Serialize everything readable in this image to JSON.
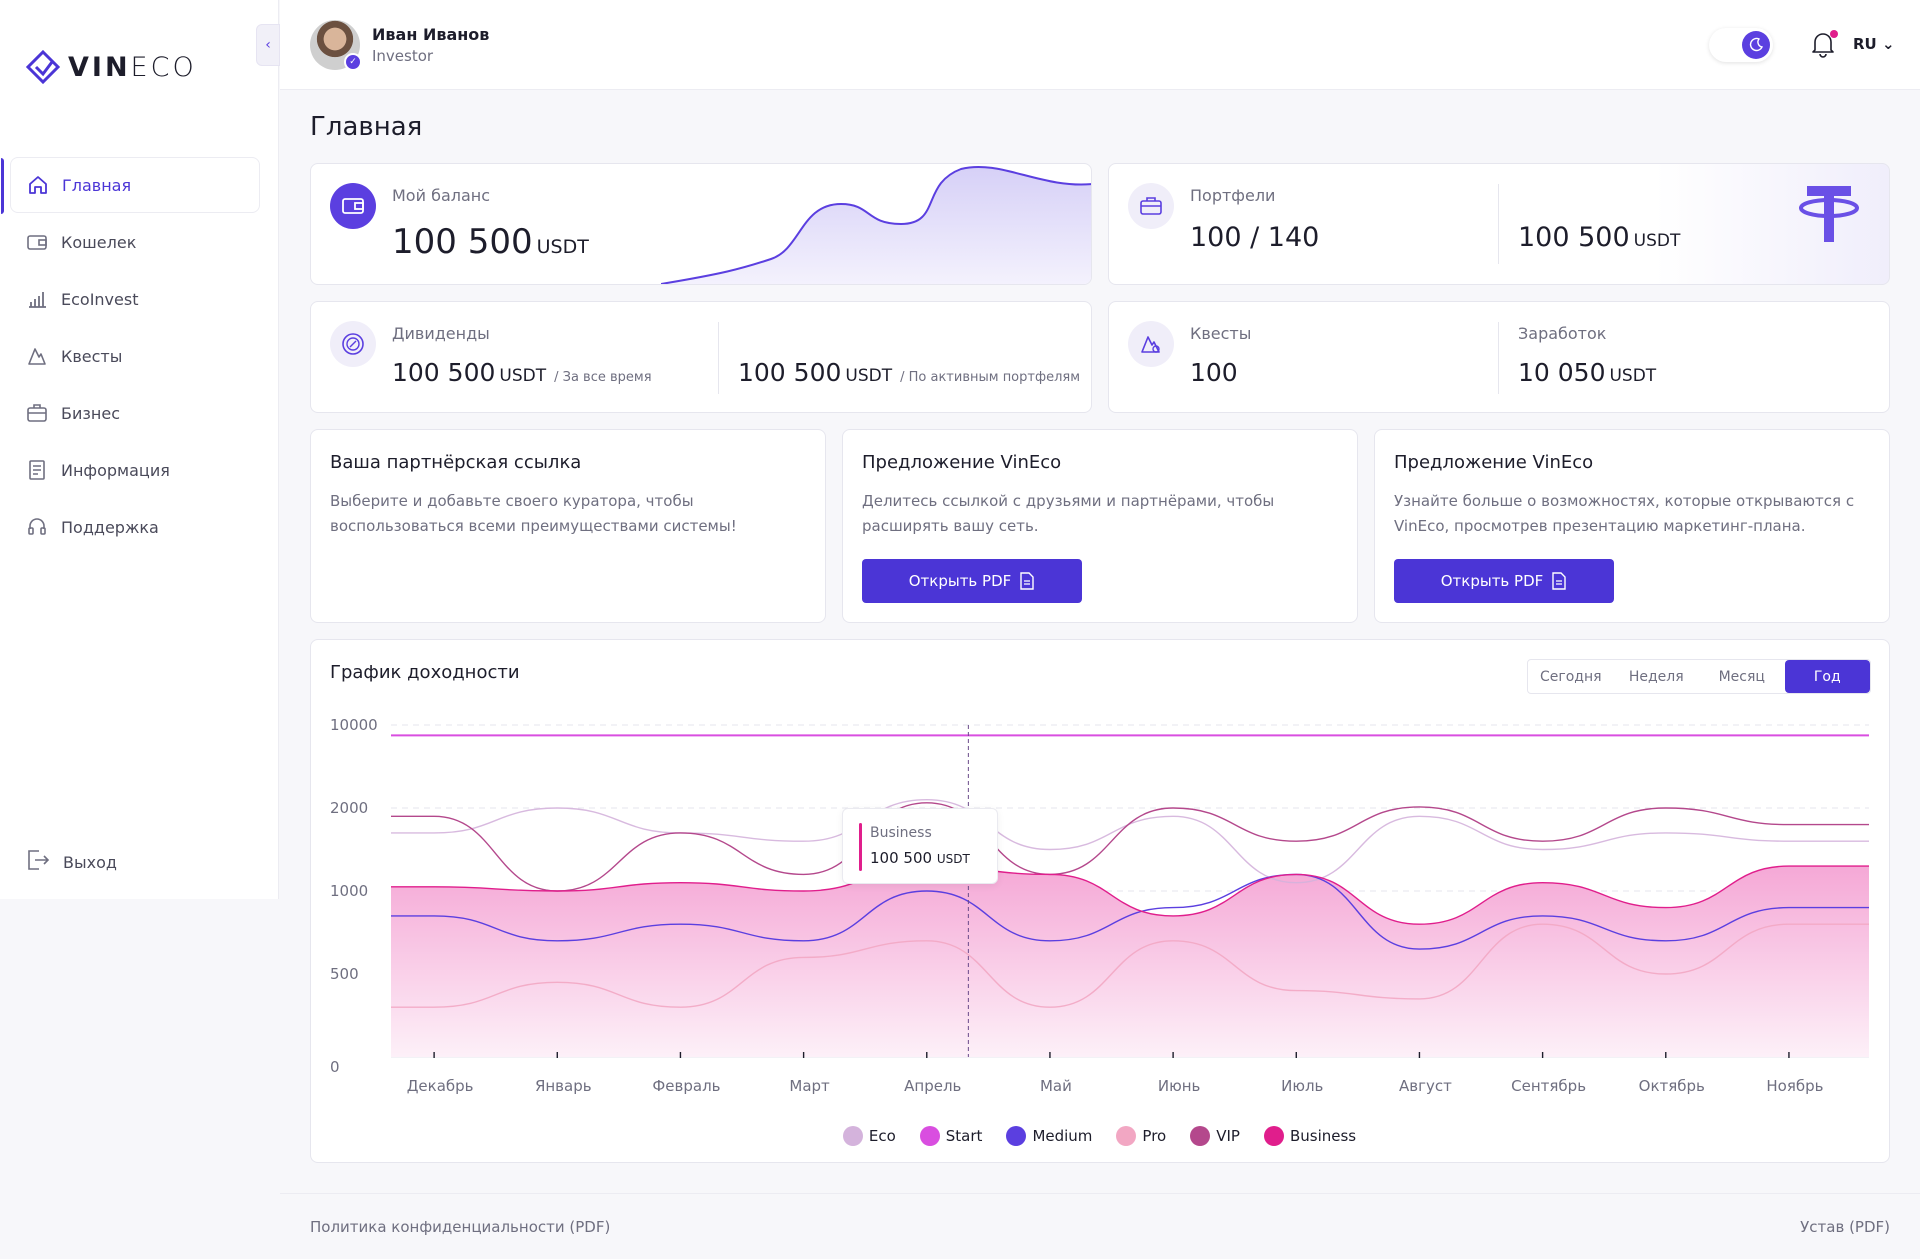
{
  "brand": {
    "bold": "VIN",
    "light": "ECO"
  },
  "sidebar": {
    "items": [
      {
        "label": "Главная",
        "icon": "home-icon"
      },
      {
        "label": "Кошелек",
        "icon": "wallet-icon"
      },
      {
        "label": "EcoInvest",
        "icon": "bar-chart-icon"
      },
      {
        "label": "Квесты",
        "icon": "quest-icon"
      },
      {
        "label": "Бизнес",
        "icon": "briefcase-icon"
      },
      {
        "label": "Информация",
        "icon": "document-icon"
      },
      {
        "label": "Поддержка",
        "icon": "headset-icon"
      }
    ],
    "logout": "Выход"
  },
  "header": {
    "user_name": "Иван Иванов",
    "user_role": "Investor",
    "lang": "RU"
  },
  "page_title": "Главная",
  "cards": {
    "balance": {
      "label": "Мой баланс",
      "value": "100 500",
      "unit": "USDT"
    },
    "portfolios": {
      "label": "Портфели",
      "value": "100 / 140",
      "value2": "100 500",
      "unit": "USDT"
    },
    "dividends": {
      "label": "Дивиденды",
      "value": "100 500",
      "unit": "USDT",
      "sub": "/ За все время",
      "value2": "100 500",
      "unit2": "USDT",
      "sub2": "/ По активным портфелям"
    },
    "quests": {
      "label": "Квесты",
      "value": "100",
      "label2": "Заработок",
      "value2": "10 050",
      "unit2": "USDT"
    }
  },
  "promos": [
    {
      "title": "Ваша партнёрская ссылка",
      "text": "Выберите и добавьте своего куратора, чтобы воспользоваться всеми преимуществами системы!"
    },
    {
      "title": "Предложение VinEco",
      "text": "Делитесь ссылкой с друзьями и партнёрами, чтобы расширять вашу сеть.",
      "button": "Открыть PDF"
    },
    {
      "title": "Предложение VinEco",
      "text": "Узнайте больше о возможностях, которые открываются с VinEco, просмотрев презентацию маркетинг-плана.",
      "button": "Открыть PDF"
    }
  ],
  "chart": {
    "title": "График доходности",
    "periods": [
      "Сегодня",
      "Неделя",
      "Месяц",
      "Год"
    ],
    "active_period": "Год",
    "tooltip": {
      "series": "Business",
      "value": "100 500",
      "unit": "USDT"
    }
  },
  "chart_data": {
    "type": "area",
    "categories": [
      "Декабрь",
      "Январь",
      "Февраль",
      "Март",
      "Апрель",
      "Май",
      "Июнь",
      "Июль",
      "Август",
      "Сентябрь",
      "Октябрь",
      "Ноябрь"
    ],
    "yticks": [
      "0",
      "500",
      "1000",
      "2000",
      "10000"
    ],
    "series": [
      {
        "name": "Eco",
        "color": "#d4b3dc",
        "values": [
          1700,
          2000,
          1700,
          1600,
          2800,
          1500,
          1900,
          1100,
          1900,
          1500,
          1700,
          1600
        ]
      },
      {
        "name": "Start",
        "color": "#d94ee0",
        "values": [
          9000,
          9000,
          9000,
          9000,
          9000,
          9000,
          9000,
          9000,
          9000,
          9000,
          9000,
          9000
        ]
      },
      {
        "name": "Medium",
        "color": "#5b3fe0",
        "values": [
          850,
          700,
          800,
          700,
          1000,
          700,
          900,
          1200,
          650,
          850,
          700,
          900
        ]
      },
      {
        "name": "Pro",
        "color": "#f2a7c3",
        "values": [
          300,
          450,
          300,
          600,
          700,
          300,
          700,
          400,
          350,
          800,
          500,
          800
        ]
      },
      {
        "name": "VIP",
        "color": "#b4488c",
        "values": [
          1900,
          1000,
          1700,
          1200,
          2500,
          1200,
          2000,
          1600,
          2100,
          1600,
          2000,
          1800
        ]
      },
      {
        "name": "Business",
        "color": "#e01e8c",
        "values": [
          1050,
          1000,
          1100,
          1000,
          1300,
          1200,
          850,
          1200,
          800,
          1100,
          900,
          1300
        ]
      }
    ]
  },
  "footer": {
    "privacy": "Политика конфиденциальности (PDF)",
    "charter": "Устав (PDF)"
  }
}
